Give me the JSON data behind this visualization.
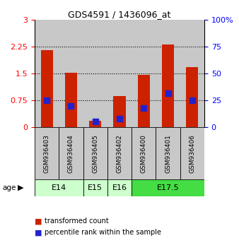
{
  "title": "GDS4591 / 1436096_at",
  "samples": [
    "GSM936403",
    "GSM936404",
    "GSM936405",
    "GSM936402",
    "GSM936400",
    "GSM936401",
    "GSM936406"
  ],
  "transformed_count": [
    2.15,
    1.52,
    0.18,
    0.88,
    1.47,
    2.32,
    1.68
  ],
  "percentile_rank": [
    25,
    20,
    5,
    8,
    18,
    32,
    25
  ],
  "age_groups": [
    {
      "label": "E14",
      "spans": [
        0,
        2
      ],
      "color": "#ccffcc"
    },
    {
      "label": "E15",
      "spans": [
        2,
        3
      ],
      "color": "#ccffcc"
    },
    {
      "label": "E16",
      "spans": [
        3,
        4
      ],
      "color": "#ccffcc"
    },
    {
      "label": "E17.5",
      "spans": [
        4,
        7
      ],
      "color": "#44dd44"
    }
  ],
  "ylim_left": [
    0,
    3
  ],
  "ylim_right": [
    0,
    100
  ],
  "yticks_left": [
    0,
    0.75,
    1.5,
    2.25,
    3
  ],
  "yticks_right": [
    0,
    25,
    50,
    75,
    100
  ],
  "bar_color": "#cc2200",
  "dot_color": "#2222cc",
  "bar_width": 0.5,
  "dot_size": 40,
  "sample_bg_color": "#c8c8c8",
  "grid_color": "black",
  "legend_items": [
    {
      "label": "transformed count",
      "color": "#cc2200"
    },
    {
      "label": "percentile rank within the sample",
      "color": "#2222cc"
    }
  ]
}
